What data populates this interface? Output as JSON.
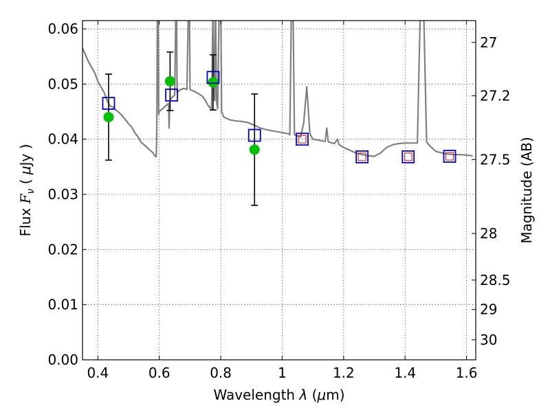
{
  "chart_data": {
    "type": "scatter",
    "title": "",
    "xlabel": "Wavelength  λ (μm)",
    "ylabel": "Flux  F_ν  ( μJy )",
    "ylabel_parts": {
      "pre": "Flux ",
      "sym": "F",
      "sub": "ν",
      "mid": "  ( ",
      "mu": "μ",
      "post": "Jy )"
    },
    "xlabel_parts": {
      "pre": "Wavelength  ",
      "sym": "λ",
      "mid": " (",
      "mu": "μ",
      "post": "m)"
    },
    "y2label": "Magnitude (AB)",
    "xlim": [
      0.35,
      1.63
    ],
    "ylim": [
      0.0,
      0.0615
    ],
    "grid": true,
    "x_ticks": [
      0.4,
      0.6,
      0.8,
      1.0,
      1.2,
      1.4,
      1.6
    ],
    "x_tick_labels": [
      "0.4",
      "0.6",
      "0.8",
      "1",
      "1.2",
      "1.4",
      "1.6"
    ],
    "y_ticks": [
      0.0,
      0.01,
      0.02,
      0.03,
      0.04,
      0.05,
      0.06
    ],
    "y_tick_labels": [
      "0.00",
      "0.01",
      "0.02",
      "0.03",
      "0.04",
      "0.05",
      "0.06"
    ],
    "y2_ticks": [
      27,
      27.2,
      27.5,
      28,
      28.5,
      29,
      30
    ],
    "y2_tick_labels": [
      "27",
      "27.2",
      "27.5",
      "28",
      "28.5",
      "29",
      "30"
    ],
    "colors": {
      "model": "#808080",
      "observed": "#00c000",
      "model_photometry": "#0000cc",
      "inner_square": "#cc3333",
      "error_bar": "#000000"
    },
    "series": [
      {
        "kind": "model_spectrum",
        "points": [
          [
            0.35,
            0.0565
          ],
          [
            0.37,
            0.054
          ],
          [
            0.38,
            0.053
          ],
          [
            0.39,
            0.052
          ],
          [
            0.4,
            0.0505
          ],
          [
            0.41,
            0.0495
          ],
          [
            0.42,
            0.0485
          ],
          [
            0.43,
            0.047
          ],
          [
            0.44,
            0.046
          ],
          [
            0.45,
            0.0458
          ],
          [
            0.46,
            0.0452
          ],
          [
            0.47,
            0.0448
          ],
          [
            0.48,
            0.0442
          ],
          [
            0.49,
            0.0435
          ],
          [
            0.5,
            0.0428
          ],
          [
            0.51,
            0.0422
          ],
          [
            0.52,
            0.0412
          ],
          [
            0.53,
            0.0405
          ],
          [
            0.54,
            0.0395
          ],
          [
            0.55,
            0.039
          ],
          [
            0.56,
            0.0385
          ],
          [
            0.57,
            0.038
          ],
          [
            0.58,
            0.0375
          ],
          [
            0.585,
            0.037
          ],
          [
            0.59,
            0.0368
          ],
          [
            0.592,
            0.042
          ],
          [
            0.594,
            0.065
          ],
          [
            0.596,
            0.065
          ],
          [
            0.598,
            0.0445
          ],
          [
            0.6,
            0.045
          ],
          [
            0.61,
            0.0455
          ],
          [
            0.62,
            0.046
          ],
          [
            0.63,
            0.0465
          ],
          [
            0.632,
            0.042
          ],
          [
            0.634,
            0.047
          ],
          [
            0.64,
            0.0475
          ],
          [
            0.65,
            0.048
          ],
          [
            0.654,
            0.065
          ],
          [
            0.656,
            0.065
          ],
          [
            0.658,
            0.0485
          ],
          [
            0.67,
            0.049
          ],
          [
            0.68,
            0.0492
          ],
          [
            0.69,
            0.049
          ],
          [
            0.695,
            0.065
          ],
          [
            0.698,
            0.065
          ],
          [
            0.7,
            0.049
          ],
          [
            0.72,
            0.0485
          ],
          [
            0.74,
            0.0478
          ],
          [
            0.75,
            0.047
          ],
          [
            0.76,
            0.046
          ],
          [
            0.77,
            0.0455
          ],
          [
            0.775,
            0.065
          ],
          [
            0.778,
            0.049
          ],
          [
            0.78,
            0.047
          ],
          [
            0.783,
            0.065
          ],
          [
            0.786,
            0.047
          ],
          [
            0.79,
            0.0455
          ],
          [
            0.795,
            0.065
          ],
          [
            0.8,
            0.065
          ],
          [
            0.803,
            0.045
          ],
          [
            0.81,
            0.044
          ],
          [
            0.83,
            0.0435
          ],
          [
            0.85,
            0.0433
          ],
          [
            0.87,
            0.0432
          ],
          [
            0.89,
            0.043
          ],
          [
            0.91,
            0.0425
          ],
          [
            0.93,
            0.042
          ],
          [
            0.95,
            0.0417
          ],
          [
            0.97,
            0.0415
          ],
          [
            0.99,
            0.0413
          ],
          [
            1.0,
            0.0412
          ],
          [
            1.01,
            0.0411
          ],
          [
            1.02,
            0.041
          ],
          [
            1.025,
            0.0408
          ],
          [
            1.03,
            0.065
          ],
          [
            1.035,
            0.065
          ],
          [
            1.04,
            0.0408
          ],
          [
            1.05,
            0.0406
          ],
          [
            1.06,
            0.0404
          ],
          [
            1.07,
            0.043
          ],
          [
            1.08,
            0.0495
          ],
          [
            1.09,
            0.041
          ],
          [
            1.1,
            0.04
          ],
          [
            1.12,
            0.0398
          ],
          [
            1.14,
            0.0396
          ],
          [
            1.145,
            0.042
          ],
          [
            1.15,
            0.0395
          ],
          [
            1.17,
            0.0392
          ],
          [
            1.18,
            0.04
          ],
          [
            1.185,
            0.039
          ],
          [
            1.2,
            0.0385
          ],
          [
            1.22,
            0.038
          ],
          [
            1.24,
            0.0375
          ],
          [
            1.26,
            0.0372
          ],
          [
            1.28,
            0.037
          ],
          [
            1.3,
            0.0369
          ],
          [
            1.32,
            0.0375
          ],
          [
            1.34,
            0.0385
          ],
          [
            1.36,
            0.039
          ],
          [
            1.38,
            0.0392
          ],
          [
            1.4,
            0.0393
          ],
          [
            1.42,
            0.0393
          ],
          [
            1.44,
            0.0393
          ],
          [
            1.45,
            0.065
          ],
          [
            1.46,
            0.065
          ],
          [
            1.47,
            0.0395
          ],
          [
            1.48,
            0.0388
          ],
          [
            1.5,
            0.0378
          ],
          [
            1.52,
            0.0375
          ],
          [
            1.54,
            0.0373
          ],
          [
            1.56,
            0.0372
          ],
          [
            1.58,
            0.0372
          ],
          [
            1.6,
            0.0371
          ],
          [
            1.62,
            0.037
          ]
        ]
      },
      {
        "kind": "observed",
        "points": [
          {
            "x": 0.435,
            "y": 0.044,
            "err": 0.0078
          },
          {
            "x": 0.635,
            "y": 0.0505,
            "err": 0.0053
          },
          {
            "x": 0.775,
            "y": 0.0503,
            "err": 0.005
          },
          {
            "x": 0.91,
            "y": 0.0381,
            "err": 0.0101
          }
        ]
      },
      {
        "kind": "model_photometry",
        "points": [
          {
            "x": 0.435,
            "y": 0.0465
          },
          {
            "x": 0.64,
            "y": 0.048
          },
          {
            "x": 0.775,
            "y": 0.0512
          },
          {
            "x": 0.91,
            "y": 0.0407
          },
          {
            "x": 1.065,
            "y": 0.04
          },
          {
            "x": 1.26,
            "y": 0.0368
          },
          {
            "x": 1.41,
            "y": 0.0368
          },
          {
            "x": 1.545,
            "y": 0.0369
          }
        ]
      },
      {
        "kind": "inner_squares",
        "points": [
          {
            "x": 1.065,
            "y": 0.04
          },
          {
            "x": 1.26,
            "y": 0.0368
          },
          {
            "x": 1.41,
            "y": 0.0368
          },
          {
            "x": 1.545,
            "y": 0.0369
          }
        ]
      }
    ]
  }
}
